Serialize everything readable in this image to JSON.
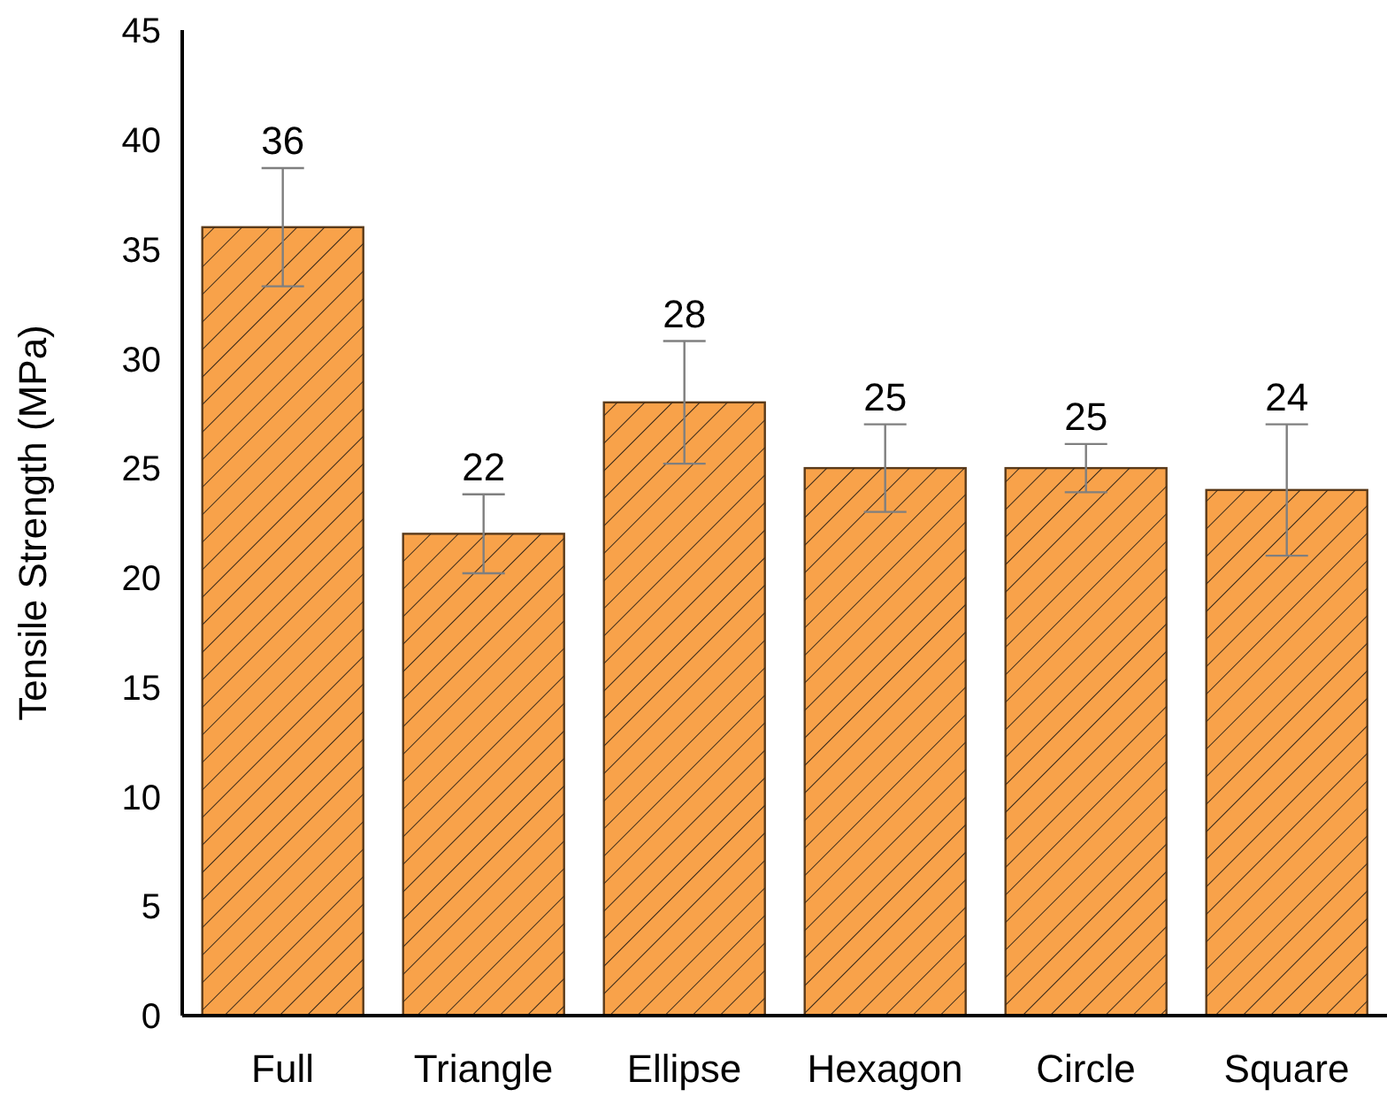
{
  "chart_data": {
    "type": "bar",
    "ylabel": "Tensile Strength (MPa)",
    "categories": [
      "Full",
      "Triangle",
      "Ellipse",
      "Hexagon",
      "Circle",
      "Square"
    ],
    "values": [
      36,
      22,
      28,
      25,
      25,
      24
    ],
    "errors": [
      2.7,
      1.8,
      2.8,
      2,
      1.1,
      3
    ],
    "color": "#f8a24a",
    "ylim": [
      0,
      45
    ],
    "yticks": [
      0,
      5,
      10,
      15,
      20,
      25,
      30,
      35,
      40,
      45
    ],
    "data_labels": true,
    "grid": false,
    "legend": false
  }
}
